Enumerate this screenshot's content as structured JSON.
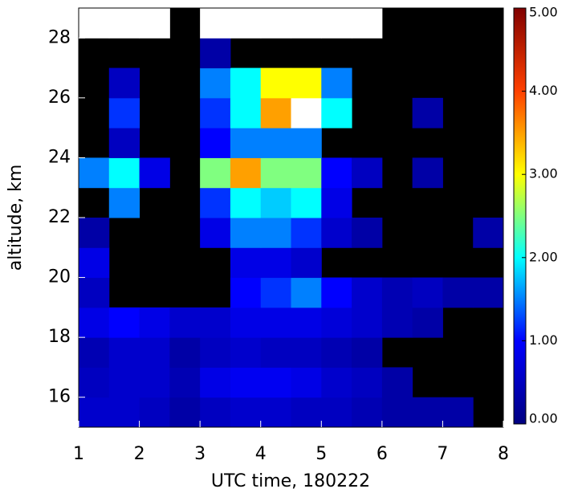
{
  "chart_data": {
    "type": "heatmap",
    "x_label": "UTC time, 180222",
    "y_label": "altitude, km",
    "xlim": [
      1,
      8
    ],
    "xticks": [
      1,
      2,
      3,
      4,
      5,
      6,
      7,
      8
    ],
    "ylim": [
      15,
      29
    ],
    "yticks": [
      16,
      18,
      20,
      22,
      24,
      26,
      28
    ],
    "x_bins": [
      1,
      1.5,
      2,
      2.5,
      3,
      3.5,
      4,
      4.5,
      5,
      5.5,
      6,
      6.5,
      7,
      7.5,
      8
    ],
    "y_bins": [
      15,
      16,
      17,
      18,
      19,
      20,
      21,
      22,
      23,
      24,
      25,
      26,
      27,
      28,
      29
    ],
    "z": [
      [
        0.6,
        0.6,
        0.5,
        0.3,
        0.5,
        0.6,
        0.6,
        0.5,
        0.5,
        0.4,
        0.3,
        0.3,
        0.3,
        null
      ],
      [
        0.5,
        0.6,
        0.6,
        0.4,
        0.8,
        0.9,
        0.9,
        0.8,
        0.6,
        0.5,
        0.3,
        null,
        null,
        null
      ],
      [
        0.4,
        0.6,
        0.6,
        0.3,
        0.5,
        0.6,
        0.5,
        0.5,
        0.4,
        0.3,
        null,
        null,
        null,
        null
      ],
      [
        0.8,
        1,
        0.8,
        0.6,
        0.6,
        0.8,
        0.8,
        0.8,
        0.7,
        0.6,
        0.4,
        0.3,
        null,
        null
      ],
      [
        0.5,
        null,
        null,
        null,
        null,
        1,
        1.2,
        1.5,
        1,
        0.6,
        0.4,
        0.5,
        0.3,
        0.3
      ],
      [
        0.8,
        null,
        null,
        null,
        null,
        0.8,
        0.8,
        0.6,
        null,
        null,
        null,
        null,
        null,
        null
      ],
      [
        0.3,
        null,
        null,
        null,
        0.8,
        1.5,
        1.5,
        1.2,
        0.6,
        0.3,
        null,
        null,
        null,
        0.3
      ],
      [
        null,
        1.5,
        null,
        null,
        1.2,
        2,
        1.8,
        2,
        0.8,
        null,
        null,
        null,
        null,
        null
      ],
      [
        1.5,
        2,
        0.8,
        null,
        2.5,
        3.5,
        2.5,
        2.5,
        1,
        0.5,
        null,
        0.3,
        null,
        null
      ],
      [
        null,
        0.5,
        null,
        null,
        1,
        1.5,
        1.5,
        1.5,
        null,
        null,
        null,
        null,
        null,
        null
      ],
      [
        null,
        1.2,
        null,
        null,
        1.2,
        2,
        3.5,
        6,
        2,
        null,
        null,
        0.3,
        null,
        null
      ],
      [
        null,
        0.5,
        null,
        null,
        1.5,
        2,
        3,
        3,
        1.5,
        null,
        null,
        null,
        null,
        null
      ],
      [
        null,
        null,
        null,
        null,
        0.3,
        null,
        null,
        null,
        null,
        null,
        null,
        null,
        null,
        null
      ],
      [
        6,
        6,
        6,
        null,
        6,
        6,
        6,
        6,
        6,
        6,
        null,
        null,
        null,
        null
      ]
    ],
    "no_data_color": "#000000",
    "over_color": "#ffffff",
    "colormap": [
      "#000080",
      "#0000ff",
      "#00ffff",
      "#ffff00",
      "#ff4000",
      "#800000"
    ],
    "zlim": [
      0,
      5
    ],
    "zticks": [
      {
        "value": 0,
        "label": "0.00"
      },
      {
        "value": 1,
        "label": "1.00"
      },
      {
        "value": 2,
        "label": "2.00"
      },
      {
        "value": 3,
        "label": "3.00"
      },
      {
        "value": 4,
        "label": "4.00"
      },
      {
        "value": 5,
        "label": "5.00"
      }
    ]
  }
}
